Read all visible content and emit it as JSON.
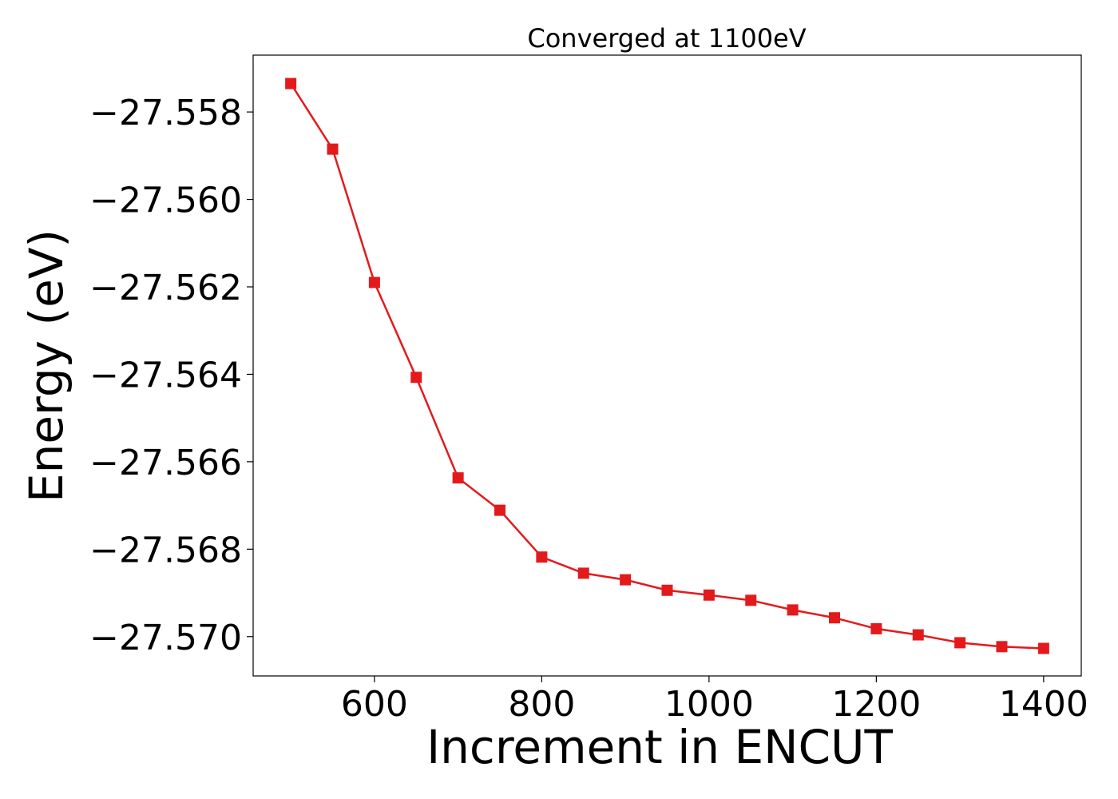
{
  "chart_data": {
    "type": "line",
    "title": "Converged at 1100eV",
    "xlabel": "Increment in ENCUT",
    "ylabel": "Energy (eV)",
    "xlim": [
      455,
      1445
    ],
    "ylim": [
      -27.5709,
      -27.5567
    ],
    "x_ticks": [
      600,
      800,
      1000,
      1200,
      1400
    ],
    "x_tick_labels": [
      "600",
      "800",
      "1000",
      "1200",
      "1400"
    ],
    "y_ticks": [
      -27.558,
      -27.56,
      -27.562,
      -27.564,
      -27.566,
      -27.568,
      -27.57
    ],
    "y_tick_labels": [
      "−27.558",
      "−27.560",
      "−27.562",
      "−27.564",
      "−27.566",
      "−27.568",
      "−27.570"
    ],
    "grid": false,
    "series": [
      {
        "color": "#e31a1c",
        "marker": "square",
        "x": [
          500,
          550,
          600,
          650,
          700,
          750,
          800,
          850,
          900,
          950,
          1000,
          1050,
          1100,
          1150,
          1200,
          1250,
          1300,
          1350,
          1400
        ],
        "y": [
          -27.55735,
          -27.55885,
          -27.5619,
          -27.56407,
          -27.56637,
          -27.56711,
          -27.56818,
          -27.56855,
          -27.5687,
          -27.56894,
          -27.56905,
          -27.56917,
          -27.56939,
          -27.56957,
          -27.56982,
          -27.56996,
          -27.57014,
          -27.57023,
          -27.57027
        ]
      }
    ]
  }
}
